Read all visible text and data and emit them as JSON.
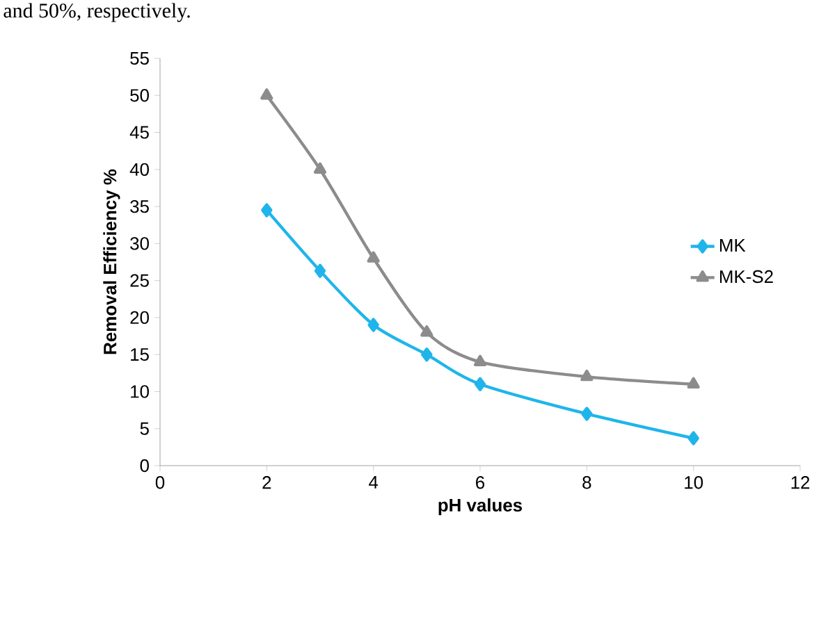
{
  "chart_data": {
    "type": "line",
    "xlabel": "pH values",
    "ylabel": "Removal Efficiency %",
    "annotations": [
      "and 50%, respectively."
    ],
    "xlim": [
      0,
      12
    ],
    "xticks": [
      0,
      2,
      4,
      6,
      8,
      10,
      12
    ],
    "ylim": [
      0,
      55
    ],
    "yticks": [
      0,
      5,
      10,
      15,
      20,
      25,
      30,
      35,
      40,
      45,
      50,
      55
    ],
    "grid": false,
    "legend": "right",
    "line_style": "solid",
    "series": [
      {
        "name": "MK",
        "color": "#1fb5ea",
        "marker": "diamond",
        "x": [
          2,
          3,
          4,
          5,
          6,
          8,
          10
        ],
        "values": [
          34.5,
          26.3,
          19,
          15,
          11,
          7,
          3.7
        ]
      },
      {
        "name": "MK-S2",
        "color": "#8c8c8c",
        "marker": "triangle",
        "x": [
          2,
          3,
          4,
          5,
          6,
          8,
          10
        ],
        "values": [
          50,
          40,
          28,
          18,
          14,
          12,
          11
        ]
      }
    ]
  }
}
